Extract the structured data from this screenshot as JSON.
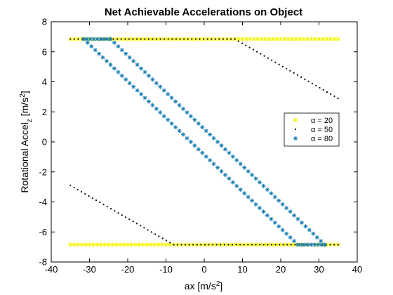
{
  "chart_data": {
    "type": "scatter",
    "title": "Net Achievable Accelerations on Object",
    "xlabel": "ax [m/s",
    "xlabel_sup": "2",
    "xlabel_end": "]",
    "ylabel_main": "Rotational Accel",
    "ylabel_sub": "z",
    "ylabel_unit": " [m/s",
    "ylabel_sup": "2",
    "ylabel_end": "]",
    "xlim": [
      -40,
      40
    ],
    "ylim": [
      -8,
      8
    ],
    "xticks": [
      "-40",
      "-30",
      "-20",
      "-10",
      "0",
      "10",
      "20",
      "30",
      "40"
    ],
    "yticks": [
      "-8",
      "-6",
      "-4",
      "-2",
      "0",
      "2",
      "4",
      "6",
      "8"
    ],
    "grid": false,
    "legend_position": "right",
    "legend_symbol": "α",
    "series": [
      {
        "name": "= 20",
        "marker": "asterisk",
        "color": "#f5f500",
        "segments": [
          {
            "x0": -35,
            "y0": 6.85,
            "x1": 35,
            "y1": 6.85,
            "n": 70
          },
          {
            "x0": -35,
            "y0": -6.85,
            "x1": 35,
            "y1": -6.85,
            "n": 70
          }
        ]
      },
      {
        "name": "= 50",
        "marker": "dot",
        "color": "#000000",
        "segments": [
          {
            "x0": -35,
            "y0": 6.85,
            "x1": 8,
            "y1": 6.85,
            "n": 42
          },
          {
            "x0": 8,
            "y0": 6.85,
            "x1": 35,
            "y1": 2.9,
            "n": 28
          },
          {
            "x0": -35,
            "y0": -2.9,
            "x1": -8,
            "y1": -6.85,
            "n": 28
          },
          {
            "x0": -8,
            "y0": -6.85,
            "x1": 35,
            "y1": -6.85,
            "n": 42
          }
        ]
      },
      {
        "name": "= 80",
        "marker": "asterisk",
        "color": "#1a7fb5",
        "segments": [
          {
            "x0": -31.5,
            "y0": 6.85,
            "x1": -24.5,
            "y1": 6.85,
            "n": 8
          },
          {
            "x0": -24.5,
            "y0": 6.85,
            "x1": 31.5,
            "y1": -6.85,
            "n": 56
          },
          {
            "x0": 31.5,
            "y0": -6.85,
            "x1": 24.5,
            "y1": -6.85,
            "n": 8
          },
          {
            "x0": 24.5,
            "y0": -6.85,
            "x1": -31.5,
            "y1": 6.85,
            "n": 56
          }
        ]
      }
    ]
  }
}
